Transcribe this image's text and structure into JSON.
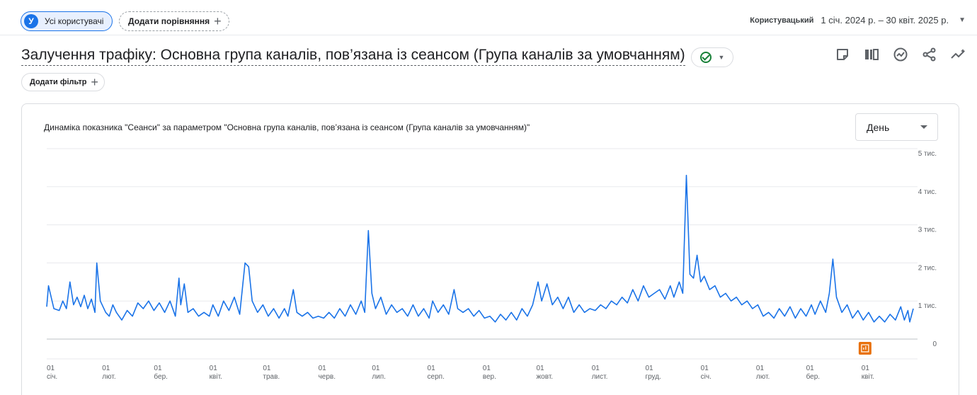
{
  "topbar": {
    "segment_avatar": "У",
    "segment_label": "Усі користувачі",
    "compare_label": "Додати порівняння",
    "date_label": "Користувацький",
    "date_range": "1 січ. 2024 р. – 30 квіт. 2025 р."
  },
  "report": {
    "title": "Залучення трафіку: Основна група каналів, пов’язана із сеансом (Група каналів за умовчанням)",
    "filter_label": "Додати фільтр"
  },
  "toolbar": {
    "icons": [
      "note-icon",
      "compare-columns-icon",
      "insights-icon",
      "share-icon",
      "trend-icon"
    ]
  },
  "card": {
    "title": "Динаміка показника \"Сеанси\" за параметром \"Основна група каналів, пов’язана із сеансом (Група каналів за умовчанням)\"",
    "granularity": "День"
  },
  "colors": {
    "accent": "#1a73e8",
    "line": "#1a73e8",
    "annotation": "#e8710a",
    "success": "#188038"
  },
  "chart_data": {
    "type": "line",
    "ylim": [
      0,
      5000
    ],
    "y_ticks": [
      {
        "value": 5000,
        "label": "5 тис."
      },
      {
        "value": 4000,
        "label": "4 тис."
      },
      {
        "value": 3000,
        "label": "3 тис."
      },
      {
        "value": 2000,
        "label": "2 тис."
      },
      {
        "value": 1000,
        "label": "1 тис."
      },
      {
        "value": 0,
        "label": "0"
      }
    ],
    "x_ticks": [
      {
        "date": "2024-01-01",
        "day": "01",
        "month": "січ."
      },
      {
        "date": "2024-02-01",
        "day": "01",
        "month": "лют."
      },
      {
        "date": "2024-03-01",
        "day": "01",
        "month": "бер."
      },
      {
        "date": "2024-04-01",
        "day": "01",
        "month": "квіт."
      },
      {
        "date": "2024-05-01",
        "day": "01",
        "month": "трав."
      },
      {
        "date": "2024-06-01",
        "day": "01",
        "month": "черв."
      },
      {
        "date": "2024-07-01",
        "day": "01",
        "month": "лип."
      },
      {
        "date": "2024-08-01",
        "day": "01",
        "month": "серп."
      },
      {
        "date": "2024-09-01",
        "day": "01",
        "month": "вер."
      },
      {
        "date": "2024-10-01",
        "day": "01",
        "month": "жовт."
      },
      {
        "date": "2024-11-01",
        "day": "01",
        "month": "лист."
      },
      {
        "date": "2024-12-01",
        "day": "01",
        "month": "груд."
      },
      {
        "date": "2025-01-01",
        "day": "01",
        "month": "січ."
      },
      {
        "date": "2025-02-01",
        "day": "01",
        "month": "лют."
      },
      {
        "date": "2025-03-01",
        "day": "01",
        "month": "бер."
      },
      {
        "date": "2025-04-01",
        "day": "01",
        "month": "квіт."
      }
    ],
    "x_range": [
      "2024-01-01",
      "2025-04-30"
    ],
    "annotation_date": "2025-04-03",
    "series": [
      {
        "points": [
          [
            "2024-01-01",
            850
          ],
          [
            "2024-01-02",
            1400
          ],
          [
            "2024-01-05",
            800
          ],
          [
            "2024-01-08",
            750
          ],
          [
            "2024-01-10",
            1000
          ],
          [
            "2024-01-12",
            800
          ],
          [
            "2024-01-14",
            1500
          ],
          [
            "2024-01-16",
            900
          ],
          [
            "2024-01-18",
            1100
          ],
          [
            "2024-01-20",
            850
          ],
          [
            "2024-01-22",
            1150
          ],
          [
            "2024-01-24",
            800
          ],
          [
            "2024-01-26",
            1050
          ],
          [
            "2024-01-28",
            700
          ],
          [
            "2024-01-29",
            2000
          ],
          [
            "2024-01-31",
            1000
          ],
          [
            "2024-02-03",
            700
          ],
          [
            "2024-02-05",
            600
          ],
          [
            "2024-02-07",
            900
          ],
          [
            "2024-02-09",
            700
          ],
          [
            "2024-02-12",
            500
          ],
          [
            "2024-02-15",
            750
          ],
          [
            "2024-02-18",
            600
          ],
          [
            "2024-02-21",
            950
          ],
          [
            "2024-02-24",
            800
          ],
          [
            "2024-02-27",
            1000
          ],
          [
            "2024-03-01",
            750
          ],
          [
            "2024-03-04",
            950
          ],
          [
            "2024-03-07",
            700
          ],
          [
            "2024-03-10",
            1000
          ],
          [
            "2024-03-13",
            600
          ],
          [
            "2024-03-15",
            1600
          ],
          [
            "2024-03-16",
            900
          ],
          [
            "2024-03-18",
            1450
          ],
          [
            "2024-03-20",
            700
          ],
          [
            "2024-03-23",
            800
          ],
          [
            "2024-03-26",
            600
          ],
          [
            "2024-03-29",
            700
          ],
          [
            "2024-04-01",
            600
          ],
          [
            "2024-04-03",
            900
          ],
          [
            "2024-04-06",
            600
          ],
          [
            "2024-04-09",
            1000
          ],
          [
            "2024-04-12",
            750
          ],
          [
            "2024-04-15",
            1100
          ],
          [
            "2024-04-18",
            650
          ],
          [
            "2024-04-21",
            2000
          ],
          [
            "2024-04-23",
            1900
          ],
          [
            "2024-04-25",
            1000
          ],
          [
            "2024-04-28",
            700
          ],
          [
            "2024-05-01",
            900
          ],
          [
            "2024-05-04",
            600
          ],
          [
            "2024-05-07",
            800
          ],
          [
            "2024-05-10",
            550
          ],
          [
            "2024-05-13",
            800
          ],
          [
            "2024-05-15",
            600
          ],
          [
            "2024-05-18",
            1300
          ],
          [
            "2024-05-20",
            700
          ],
          [
            "2024-05-23",
            600
          ],
          [
            "2024-05-26",
            700
          ],
          [
            "2024-05-29",
            550
          ],
          [
            "2024-06-01",
            600
          ],
          [
            "2024-06-04",
            550
          ],
          [
            "2024-06-07",
            700
          ],
          [
            "2024-06-10",
            550
          ],
          [
            "2024-06-13",
            800
          ],
          [
            "2024-06-16",
            600
          ],
          [
            "2024-06-19",
            900
          ],
          [
            "2024-06-22",
            650
          ],
          [
            "2024-06-25",
            1000
          ],
          [
            "2024-06-27",
            700
          ],
          [
            "2024-06-29",
            2850
          ],
          [
            "2024-07-01",
            1200
          ],
          [
            "2024-07-03",
            800
          ],
          [
            "2024-07-06",
            1100
          ],
          [
            "2024-07-09",
            650
          ],
          [
            "2024-07-12",
            900
          ],
          [
            "2024-07-15",
            700
          ],
          [
            "2024-07-18",
            800
          ],
          [
            "2024-07-21",
            600
          ],
          [
            "2024-07-24",
            900
          ],
          [
            "2024-07-27",
            600
          ],
          [
            "2024-07-30",
            800
          ],
          [
            "2024-08-02",
            550
          ],
          [
            "2024-08-04",
            1000
          ],
          [
            "2024-08-07",
            700
          ],
          [
            "2024-08-10",
            900
          ],
          [
            "2024-08-13",
            650
          ],
          [
            "2024-08-16",
            1300
          ],
          [
            "2024-08-18",
            800
          ],
          [
            "2024-08-21",
            700
          ],
          [
            "2024-08-24",
            800
          ],
          [
            "2024-08-27",
            600
          ],
          [
            "2024-08-30",
            750
          ],
          [
            "2024-09-02",
            550
          ],
          [
            "2024-09-05",
            600
          ],
          [
            "2024-09-08",
            450
          ],
          [
            "2024-09-11",
            650
          ],
          [
            "2024-09-14",
            500
          ],
          [
            "2024-09-17",
            700
          ],
          [
            "2024-09-20",
            500
          ],
          [
            "2024-09-23",
            800
          ],
          [
            "2024-09-26",
            600
          ],
          [
            "2024-09-29",
            900
          ],
          [
            "2024-10-02",
            1500
          ],
          [
            "2024-10-04",
            1000
          ],
          [
            "2024-10-07",
            1450
          ],
          [
            "2024-10-10",
            900
          ],
          [
            "2024-10-13",
            1100
          ],
          [
            "2024-10-16",
            800
          ],
          [
            "2024-10-19",
            1100
          ],
          [
            "2024-10-22",
            700
          ],
          [
            "2024-10-25",
            900
          ],
          [
            "2024-10-28",
            700
          ],
          [
            "2024-10-31",
            800
          ],
          [
            "2024-11-03",
            750
          ],
          [
            "2024-11-06",
            900
          ],
          [
            "2024-11-09",
            800
          ],
          [
            "2024-11-12",
            1000
          ],
          [
            "2024-11-15",
            900
          ],
          [
            "2024-11-18",
            1100
          ],
          [
            "2024-11-21",
            950
          ],
          [
            "2024-11-24",
            1300
          ],
          [
            "2024-11-27",
            1000
          ],
          [
            "2024-11-30",
            1400
          ],
          [
            "2024-12-03",
            1100
          ],
          [
            "2024-12-06",
            1200
          ],
          [
            "2024-12-09",
            1300
          ],
          [
            "2024-12-12",
            1050
          ],
          [
            "2024-12-15",
            1400
          ],
          [
            "2024-12-17",
            1100
          ],
          [
            "2024-12-20",
            1500
          ],
          [
            "2024-12-22",
            1200
          ],
          [
            "2024-12-24",
            4300
          ],
          [
            "2024-12-26",
            1700
          ],
          [
            "2024-12-28",
            1600
          ],
          [
            "2024-12-30",
            2200
          ],
          [
            "2025-01-01",
            1500
          ],
          [
            "2025-01-03",
            1650
          ],
          [
            "2025-01-06",
            1300
          ],
          [
            "2025-01-09",
            1400
          ],
          [
            "2025-01-12",
            1100
          ],
          [
            "2025-01-15",
            1200
          ],
          [
            "2025-01-18",
            1000
          ],
          [
            "2025-01-21",
            1100
          ],
          [
            "2025-01-24",
            900
          ],
          [
            "2025-01-27",
            1000
          ],
          [
            "2025-01-30",
            800
          ],
          [
            "2025-02-02",
            900
          ],
          [
            "2025-02-05",
            600
          ],
          [
            "2025-02-08",
            700
          ],
          [
            "2025-02-11",
            550
          ],
          [
            "2025-02-14",
            800
          ],
          [
            "2025-02-17",
            600
          ],
          [
            "2025-02-20",
            850
          ],
          [
            "2025-02-23",
            550
          ],
          [
            "2025-02-26",
            800
          ],
          [
            "2025-03-01",
            600
          ],
          [
            "2025-03-04",
            900
          ],
          [
            "2025-03-06",
            650
          ],
          [
            "2025-03-09",
            1000
          ],
          [
            "2025-03-12",
            700
          ],
          [
            "2025-03-14",
            1200
          ],
          [
            "2025-03-16",
            2100
          ],
          [
            "2025-03-18",
            1100
          ],
          [
            "2025-03-21",
            700
          ],
          [
            "2025-03-24",
            900
          ],
          [
            "2025-03-27",
            550
          ],
          [
            "2025-03-30",
            750
          ],
          [
            "2025-04-02",
            500
          ],
          [
            "2025-04-05",
            700
          ],
          [
            "2025-04-08",
            450
          ],
          [
            "2025-04-11",
            600
          ],
          [
            "2025-04-14",
            450
          ],
          [
            "2025-04-17",
            650
          ],
          [
            "2025-04-20",
            500
          ],
          [
            "2025-04-23",
            850
          ],
          [
            "2025-04-25",
            500
          ],
          [
            "2025-04-27",
            750
          ],
          [
            "2025-04-28",
            450
          ],
          [
            "2025-04-30",
            800
          ]
        ]
      }
    ]
  }
}
